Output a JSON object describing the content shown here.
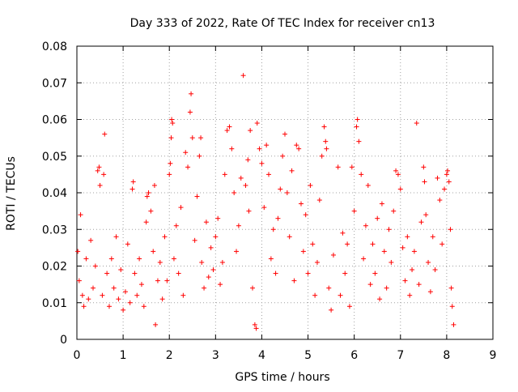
{
  "chart_data": {
    "type": "scatter",
    "title": "Day 333 of 2022, Rate Of TEC Index for receiver cn13",
    "xlabel": "GPS time / hours",
    "ylabel": "ROTI / TECUs",
    "xlim": [
      0,
      9
    ],
    "ylim": [
      0,
      0.08
    ],
    "x_ticks": [
      "0",
      "1",
      "2",
      "3",
      "4",
      "5",
      "6",
      "7",
      "8",
      "9"
    ],
    "y_ticks": [
      "0",
      "0.01",
      "0.02",
      "0.03",
      "0.04",
      "0.05",
      "0.06",
      "0.07",
      "0.08"
    ],
    "grid": true,
    "marker": "+",
    "marker_color": "#ff0000",
    "series": [
      {
        "points": [
          [
            0.02,
            0.024
          ],
          [
            0.05,
            0.016
          ],
          [
            0.08,
            0.034
          ],
          [
            0.12,
            0.012
          ],
          [
            0.15,
            0.009
          ],
          [
            0.2,
            0.022
          ],
          [
            0.25,
            0.011
          ],
          [
            0.3,
            0.027
          ],
          [
            0.35,
            0.014
          ],
          [
            0.4,
            0.02
          ],
          [
            0.45,
            0.046
          ],
          [
            0.48,
            0.047
          ],
          [
            0.5,
            0.042
          ],
          [
            0.55,
            0.012
          ],
          [
            0.58,
            0.045
          ],
          [
            0.6,
            0.056
          ],
          [
            0.65,
            0.018
          ],
          [
            0.7,
            0.009
          ],
          [
            0.75,
            0.022
          ],
          [
            0.8,
            0.014
          ],
          [
            0.85,
            0.028
          ],
          [
            0.9,
            0.011
          ],
          [
            0.95,
            0.019
          ],
          [
            1.0,
            0.008
          ],
          [
            1.05,
            0.013
          ],
          [
            1.1,
            0.026
          ],
          [
            1.15,
            0.01
          ],
          [
            1.2,
            0.041
          ],
          [
            1.22,
            0.043
          ],
          [
            1.25,
            0.018
          ],
          [
            1.3,
            0.012
          ],
          [
            1.35,
            0.022
          ],
          [
            1.4,
            0.015
          ],
          [
            1.45,
            0.009
          ],
          [
            1.5,
            0.032
          ],
          [
            1.52,
            0.039
          ],
          [
            1.55,
            0.04
          ],
          [
            1.6,
            0.035
          ],
          [
            1.65,
            0.024
          ],
          [
            1.68,
            0.042
          ],
          [
            1.7,
            0.004
          ],
          [
            1.75,
            0.016
          ],
          [
            1.8,
            0.021
          ],
          [
            1.85,
            0.011
          ],
          [
            1.9,
            0.028
          ],
          [
            1.95,
            0.016
          ],
          [
            2.0,
            0.045
          ],
          [
            2.02,
            0.048
          ],
          [
            2.04,
            0.055
          ],
          [
            2.05,
            0.06
          ],
          [
            2.07,
            0.059
          ],
          [
            2.1,
            0.022
          ],
          [
            2.15,
            0.031
          ],
          [
            2.2,
            0.018
          ],
          [
            2.25,
            0.036
          ],
          [
            2.3,
            0.012
          ],
          [
            2.35,
            0.051
          ],
          [
            2.4,
            0.047
          ],
          [
            2.45,
            0.062
          ],
          [
            2.47,
            0.067
          ],
          [
            2.5,
            0.055
          ],
          [
            2.55,
            0.027
          ],
          [
            2.6,
            0.039
          ],
          [
            2.65,
            0.05
          ],
          [
            2.68,
            0.055
          ],
          [
            2.7,
            0.021
          ],
          [
            2.75,
            0.014
          ],
          [
            2.8,
            0.032
          ],
          [
            2.85,
            0.017
          ],
          [
            2.9,
            0.025
          ],
          [
            2.95,
            0.019
          ],
          [
            3.0,
            0.028
          ],
          [
            3.05,
            0.033
          ],
          [
            3.1,
            0.015
          ],
          [
            3.15,
            0.021
          ],
          [
            3.2,
            0.045
          ],
          [
            3.25,
            0.057
          ],
          [
            3.3,
            0.058
          ],
          [
            3.35,
            0.052
          ],
          [
            3.4,
            0.04
          ],
          [
            3.45,
            0.024
          ],
          [
            3.5,
            0.031
          ],
          [
            3.55,
            0.044
          ],
          [
            3.6,
            0.072
          ],
          [
            3.65,
            0.042
          ],
          [
            3.7,
            0.049
          ],
          [
            3.72,
            0.035
          ],
          [
            3.75,
            0.057
          ],
          [
            3.8,
            0.014
          ],
          [
            3.85,
            0.004
          ],
          [
            3.88,
            0.003
          ],
          [
            3.9,
            0.059
          ],
          [
            3.95,
            0.052
          ],
          [
            4.0,
            0.048
          ],
          [
            4.05,
            0.036
          ],
          [
            4.1,
            0.053
          ],
          [
            4.15,
            0.045
          ],
          [
            4.2,
            0.022
          ],
          [
            4.25,
            0.03
          ],
          [
            4.3,
            0.018
          ],
          [
            4.35,
            0.033
          ],
          [
            4.4,
            0.041
          ],
          [
            4.45,
            0.05
          ],
          [
            4.5,
            0.056
          ],
          [
            4.55,
            0.04
          ],
          [
            4.6,
            0.028
          ],
          [
            4.65,
            0.046
          ],
          [
            4.7,
            0.016
          ],
          [
            4.75,
            0.053
          ],
          [
            4.8,
            0.052
          ],
          [
            4.85,
            0.037
          ],
          [
            4.9,
            0.024
          ],
          [
            4.95,
            0.034
          ],
          [
            5.0,
            0.018
          ],
          [
            5.05,
            0.042
          ],
          [
            5.1,
            0.026
          ],
          [
            5.15,
            0.012
          ],
          [
            5.2,
            0.021
          ],
          [
            5.25,
            0.038
          ],
          [
            5.3,
            0.05
          ],
          [
            5.35,
            0.058
          ],
          [
            5.38,
            0.054
          ],
          [
            5.4,
            0.052
          ],
          [
            5.45,
            0.014
          ],
          [
            5.5,
            0.008
          ],
          [
            5.55,
            0.023
          ],
          [
            5.65,
            0.047
          ],
          [
            5.7,
            0.012
          ],
          [
            5.75,
            0.029
          ],
          [
            5.8,
            0.018
          ],
          [
            5.85,
            0.026
          ],
          [
            5.9,
            0.009
          ],
          [
            5.95,
            0.047
          ],
          [
            6.0,
            0.035
          ],
          [
            6.05,
            0.058
          ],
          [
            6.07,
            0.06
          ],
          [
            6.1,
            0.054
          ],
          [
            6.15,
            0.045
          ],
          [
            6.2,
            0.022
          ],
          [
            6.25,
            0.031
          ],
          [
            6.3,
            0.042
          ],
          [
            6.35,
            0.015
          ],
          [
            6.4,
            0.026
          ],
          [
            6.45,
            0.018
          ],
          [
            6.5,
            0.033
          ],
          [
            6.55,
            0.011
          ],
          [
            6.6,
            0.037
          ],
          [
            6.65,
            0.024
          ],
          [
            6.7,
            0.014
          ],
          [
            6.75,
            0.03
          ],
          [
            6.8,
            0.021
          ],
          [
            6.85,
            0.035
          ],
          [
            6.9,
            0.046
          ],
          [
            6.95,
            0.045
          ],
          [
            7.0,
            0.041
          ],
          [
            7.05,
            0.025
          ],
          [
            7.1,
            0.016
          ],
          [
            7.15,
            0.028
          ],
          [
            7.2,
            0.012
          ],
          [
            7.25,
            0.019
          ],
          [
            7.3,
            0.024
          ],
          [
            7.35,
            0.059
          ],
          [
            7.4,
            0.015
          ],
          [
            7.45,
            0.032
          ],
          [
            7.5,
            0.047
          ],
          [
            7.52,
            0.043
          ],
          [
            7.55,
            0.034
          ],
          [
            7.6,
            0.021
          ],
          [
            7.65,
            0.013
          ],
          [
            7.7,
            0.028
          ],
          [
            7.75,
            0.019
          ],
          [
            7.8,
            0.044
          ],
          [
            7.85,
            0.038
          ],
          [
            7.9,
            0.026
          ],
          [
            7.95,
            0.041
          ],
          [
            8.0,
            0.045
          ],
          [
            8.02,
            0.046
          ],
          [
            8.05,
            0.043
          ],
          [
            8.08,
            0.03
          ],
          [
            8.1,
            0.014
          ],
          [
            8.12,
            0.009
          ],
          [
            8.15,
            0.004
          ]
        ]
      }
    ]
  }
}
